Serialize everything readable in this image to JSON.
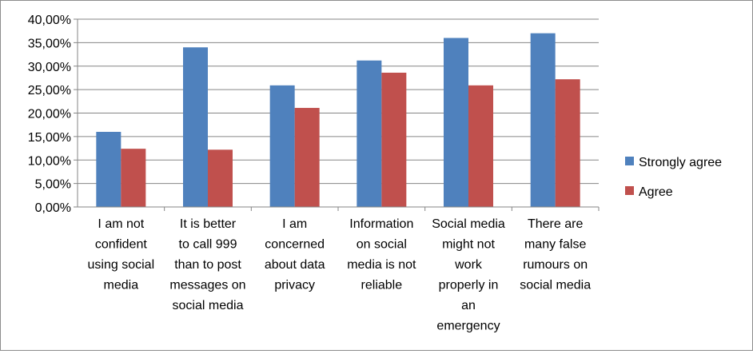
{
  "chart_data": {
    "type": "bar",
    "categories": [
      [
        "I am not",
        "confident",
        "using social",
        "media"
      ],
      [
        "It is better",
        "to call 999",
        "than to post",
        "messages on",
        "social media"
      ],
      [
        "I am",
        "concerned",
        "about data",
        "privacy"
      ],
      [
        "Information",
        "on social",
        "media is not",
        "reliable"
      ],
      [
        "Social media",
        "might not",
        "work",
        "properly in",
        "an",
        "emergency"
      ],
      [
        "There are",
        "many false",
        "rumours on",
        "social media"
      ]
    ],
    "series": [
      {
        "name": "Strongly agree",
        "color": "#4F81BD",
        "values": [
          16.0,
          34.0,
          25.9,
          31.2,
          36.0,
          37.0
        ]
      },
      {
        "name": "Agree",
        "color": "#C0504D",
        "values": [
          12.4,
          12.2,
          21.1,
          28.6,
          25.9,
          27.2
        ]
      }
    ],
    "yticks": [
      "0,00%",
      "5,00%",
      "10,00%",
      "15,00%",
      "20,00%",
      "25,00%",
      "30,00%",
      "35,00%",
      "40,00%"
    ],
    "ylim": [
      0,
      40
    ],
    "y_unit": "percent",
    "grid": true,
    "legend_position": "right"
  }
}
